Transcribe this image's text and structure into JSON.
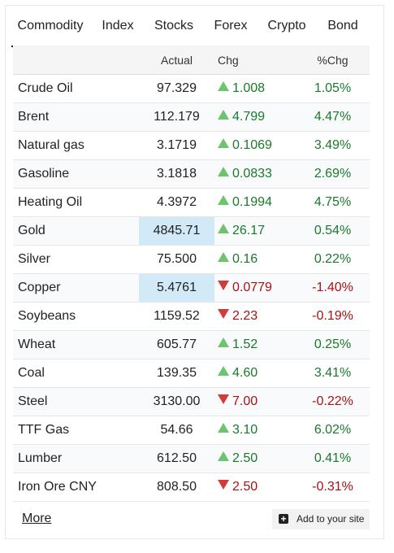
{
  "tabs": [
    {
      "label": "Commodity",
      "active": true
    },
    {
      "label": "Index"
    },
    {
      "label": "Stocks"
    },
    {
      "label": "Forex"
    },
    {
      "label": "Crypto"
    },
    {
      "label": "Bond"
    }
  ],
  "columns": {
    "name": "",
    "actual": "Actual",
    "chg": "Chg",
    "pct": "%Chg"
  },
  "rows": [
    {
      "name": "Crude Oil",
      "actual": "97.329",
      "chg": "1.008",
      "pct": "1.05%",
      "dir": "up"
    },
    {
      "name": "Brent",
      "actual": "112.179",
      "chg": "4.799",
      "pct": "4.47%",
      "dir": "up"
    },
    {
      "name": "Natural gas",
      "actual": "3.1719",
      "chg": "0.1069",
      "pct": "3.49%",
      "dir": "up"
    },
    {
      "name": "Gasoline",
      "actual": "3.1818",
      "chg": "0.0833",
      "pct": "2.69%",
      "dir": "up"
    },
    {
      "name": "Heating Oil",
      "actual": "4.3972",
      "chg": "0.1994",
      "pct": "4.75%",
      "dir": "up"
    },
    {
      "name": "Gold",
      "actual": "4845.71",
      "chg": "26.17",
      "pct": "0.54%",
      "dir": "up",
      "highlight": true
    },
    {
      "name": "Silver",
      "actual": "75.500",
      "chg": "0.16",
      "pct": "0.22%",
      "dir": "up"
    },
    {
      "name": "Copper",
      "actual": "5.4761",
      "chg": "0.0779",
      "pct": "-1.40%",
      "dir": "down",
      "highlight": true
    },
    {
      "name": "Soybeans",
      "actual": "1159.52",
      "chg": "2.23",
      "pct": "-0.19%",
      "dir": "down"
    },
    {
      "name": "Wheat",
      "actual": "605.77",
      "chg": "1.52",
      "pct": "0.25%",
      "dir": "up"
    },
    {
      "name": "Coal",
      "actual": "139.35",
      "chg": "4.60",
      "pct": "3.41%",
      "dir": "up"
    },
    {
      "name": "Steel",
      "actual": "3130.00",
      "chg": "7.00",
      "pct": "-0.22%",
      "dir": "down"
    },
    {
      "name": "TTF Gas",
      "actual": "54.66",
      "chg": "3.10",
      "pct": "6.02%",
      "dir": "up"
    },
    {
      "name": "Lumber",
      "actual": "612.50",
      "chg": "2.50",
      "pct": "0.41%",
      "dir": "up"
    },
    {
      "name": "Iron Ore CNY",
      "actual": "808.50",
      "chg": "2.50",
      "pct": "-0.31%",
      "dir": "down"
    }
  ],
  "footer": {
    "more": "More",
    "add_site": "Add to your site",
    "add_icon": "plus-square-icon"
  },
  "colors": {
    "up": "#1a7a2a",
    "down": "#aa1111",
    "up_arrow": "#6cc46c",
    "down_arrow": "#d43a3a",
    "highlight": "#d2e9f7"
  }
}
